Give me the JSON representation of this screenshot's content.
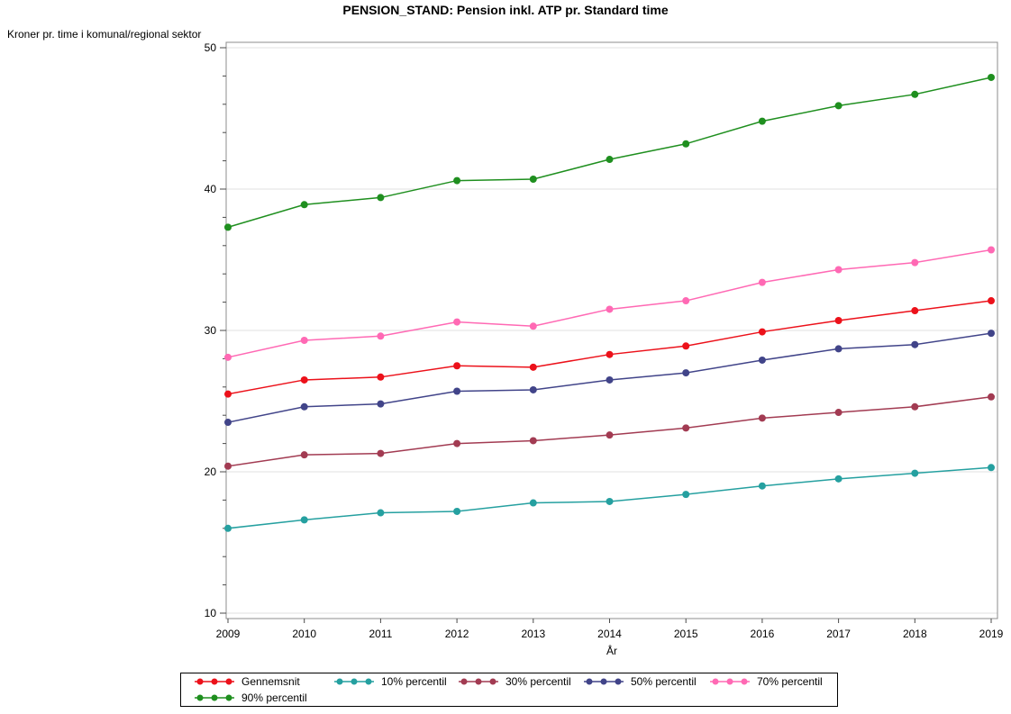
{
  "chart_data": {
    "type": "line",
    "title": "PENSION_STAND: Pension inkl. ATP pr. Standard time",
    "ylabel": "Kroner pr. time i komunal/regional sektor",
    "xlabel": "År",
    "x": [
      2009,
      2010,
      2011,
      2012,
      2013,
      2014,
      2015,
      2016,
      2017,
      2018,
      2019
    ],
    "ylim": [
      10,
      50
    ],
    "yticks": [
      10,
      20,
      30,
      40,
      50
    ],
    "y_minor_tick_step": 2,
    "grid": "horizontal",
    "legend_position": "bottom",
    "series": [
      {
        "name": "Gennemsnit",
        "color": "#EC111A",
        "values": [
          25.5,
          26.5,
          26.7,
          27.5,
          27.4,
          28.3,
          28.9,
          29.9,
          30.7,
          31.4,
          32.1
        ]
      },
      {
        "name": "10% percentil",
        "color": "#25A0A0",
        "values": [
          16.0,
          16.6,
          17.1,
          17.2,
          17.8,
          17.9,
          18.4,
          19.0,
          19.5,
          19.9,
          20.3
        ]
      },
      {
        "name": "30% percentil",
        "color": "#A23B52",
        "values": [
          20.4,
          21.2,
          21.3,
          22.0,
          22.2,
          22.6,
          23.1,
          23.8,
          24.2,
          24.6,
          25.3
        ]
      },
      {
        "name": "50% percentil",
        "color": "#414489",
        "values": [
          23.5,
          24.6,
          24.8,
          25.7,
          25.8,
          26.5,
          27.0,
          27.9,
          28.7,
          29.0,
          29.8
        ]
      },
      {
        "name": "70% percentil",
        "color": "#FF69B4",
        "values": [
          28.1,
          29.3,
          29.6,
          30.6,
          30.3,
          31.5,
          32.1,
          33.4,
          34.3,
          34.8,
          35.7
        ]
      },
      {
        "name": "90% percentil",
        "color": "#1F8F1F",
        "values": [
          37.3,
          38.9,
          39.4,
          40.6,
          40.7,
          42.1,
          43.2,
          44.8,
          45.9,
          46.7,
          47.9
        ]
      }
    ],
    "colors": {
      "gridline": "#E0E0E0",
      "frame": "#8C8C8C",
      "tick": "#4A4A4A",
      "tick_label": "#000000"
    }
  }
}
